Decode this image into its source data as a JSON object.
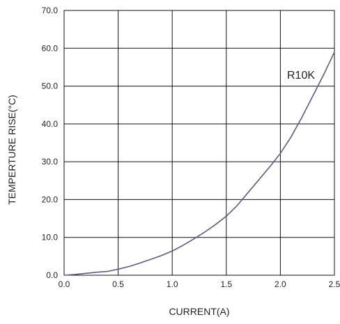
{
  "chart_data": {
    "type": "line",
    "xlabel": "CURRENT(A)",
    "ylabel": "TEMPERTURE RISE(°C)",
    "xlim": [
      0.0,
      2.5
    ],
    "ylim": [
      0.0,
      70.0
    ],
    "x_ticks": [
      "0.0",
      "0.5",
      "1.0",
      "1.5",
      "2.0",
      "2.5"
    ],
    "y_ticks": [
      "0.0",
      "10.0",
      "20.0",
      "30.0",
      "40.0",
      "50.0",
      "60.0",
      "70.0"
    ],
    "grid": true,
    "annotation": "R10K",
    "line_color": "#5a5a8c",
    "series": [
      {
        "name": "R10K",
        "x": [
          0.0,
          0.1,
          0.2,
          0.3,
          0.4,
          0.5,
          0.6,
          0.7,
          0.8,
          0.9,
          1.0,
          1.1,
          1.2,
          1.3,
          1.4,
          1.5,
          1.6,
          1.7,
          1.8,
          1.9,
          2.0,
          2.1,
          2.2,
          2.3,
          2.4,
          2.5
        ],
        "values": [
          0.0,
          0.2,
          0.5,
          0.8,
          1.0,
          1.6,
          2.3,
          3.2,
          4.2,
          5.2,
          6.4,
          7.9,
          9.6,
          11.4,
          13.4,
          15.6,
          18.4,
          21.8,
          25.2,
          28.6,
          32.2,
          36.6,
          41.8,
          47.4,
          53.0,
          59.0
        ]
      }
    ]
  }
}
